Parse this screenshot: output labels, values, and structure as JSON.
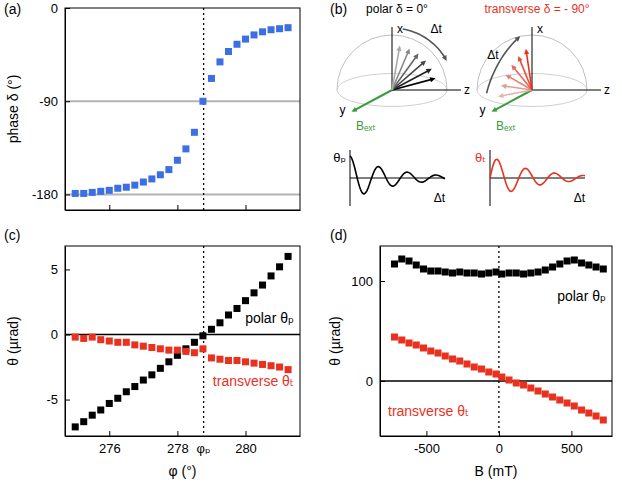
{
  "chart_data": [
    {
      "type": "scatter",
      "title": "(a)",
      "y_label": "phase δ (°)",
      "x": [
        275,
        275.25,
        275.5,
        275.75,
        276,
        276.25,
        276.5,
        276.75,
        277,
        277.25,
        277.5,
        277.75,
        278,
        278.25,
        278.5,
        278.75,
        279,
        279.25,
        279.5,
        279.75,
        280,
        280.25,
        280.5,
        280.75,
        281,
        281.25
      ],
      "xlim": [
        274.7,
        281.6
      ],
      "xticks": [
        276,
        278,
        280
      ],
      "ylim": [
        -195,
        0
      ],
      "yticks": [
        0,
        -90,
        -180
      ],
      "tick_labels": "y",
      "marker": "square",
      "series": [
        {
          "color": "#3b6fe3",
          "values": [
            -179,
            -179,
            -178,
            -177,
            -176,
            -174,
            -173,
            -171,
            -168,
            -165,
            -161,
            -156,
            -147,
            -136,
            -120,
            -90,
            -68,
            -52,
            -42,
            -35,
            -30,
            -26,
            -23,
            -21,
            -20,
            -19
          ]
        }
      ],
      "annotations": [
        {
          "type": "hline",
          "y": -90,
          "color": "#b4b4b4"
        },
        {
          "type": "hline",
          "y": -180,
          "color": "#b4b4b4"
        },
        {
          "type": "vline",
          "x": 278.77,
          "line_style": "dotted"
        }
      ]
    },
    {
      "type": "scatter",
      "title": "(c)",
      "x_label": "φ (°)",
      "y_label": "θ (µrad)",
      "x": [
        275,
        275.25,
        275.5,
        275.75,
        276,
        276.25,
        276.5,
        276.75,
        277,
        277.25,
        277.5,
        277.75,
        278,
        278.25,
        278.5,
        278.75,
        279,
        279.25,
        279.5,
        279.75,
        280,
        280.25,
        280.5,
        280.75,
        281,
        281.25
      ],
      "xlim": [
        274.7,
        281.6
      ],
      "xticks": [
        276,
        278,
        280
      ],
      "ylim": [
        -7.8,
        6.8
      ],
      "yticks": [
        -5,
        0,
        5
      ],
      "marker": "square",
      "series": [
        {
          "name": "polar θₚ",
          "color": "#000000",
          "values": [
            -7.1,
            -6.7,
            -6.2,
            -5.8,
            -5.3,
            -4.9,
            -4.4,
            -4.0,
            -3.5,
            -3.1,
            -2.6,
            -2.1,
            -1.6,
            -1.1,
            -0.6,
            -0.1,
            0.4,
            0.9,
            1.5,
            2.0,
            2.6,
            3.2,
            3.8,
            4.5,
            5.2,
            6.0
          ]
        },
        {
          "name": "transverse θₜ",
          "color": "#e8311f",
          "values": [
            -0.2,
            -0.3,
            -0.2,
            -0.4,
            -0.5,
            -0.6,
            -0.6,
            -0.8,
            -0.9,
            -1.0,
            -1.1,
            -1.2,
            -1.2,
            -1.3,
            -1.4,
            -1.1,
            -1.8,
            -1.9,
            -2.0,
            -2.0,
            -2.1,
            -2.2,
            -2.3,
            -2.4,
            -2.5,
            -2.7
          ]
        }
      ],
      "annotations": [
        {
          "type": "hline",
          "y": 0,
          "color": "#000000"
        },
        {
          "type": "vline",
          "x": 278.77,
          "label": "φₚ",
          "line_style": "dotted"
        }
      ]
    },
    {
      "type": "scatter",
      "title": "(d)",
      "x_label": "B (mT)",
      "y_label": "θ (µrad)",
      "x": [
        -720,
        -670,
        -620,
        -570,
        -520,
        -470,
        -420,
        -370,
        -320,
        -270,
        -220,
        -170,
        -120,
        -70,
        -20,
        20,
        70,
        120,
        170,
        220,
        270,
        320,
        370,
        420,
        470,
        520,
        570,
        620,
        670,
        720
      ],
      "xlim": [
        -820,
        780
      ],
      "xticks": [
        -500,
        0,
        500
      ],
      "ylim": [
        -55,
        135
      ],
      "yticks": [
        0,
        100
      ],
      "marker": "square",
      "series": [
        {
          "name": "polar θₚ",
          "color": "#000000",
          "values": [
            117,
            122,
            120,
            116,
            112,
            110,
            110,
            109,
            108,
            109,
            108,
            108,
            107,
            108,
            109,
            107,
            108,
            108,
            107,
            108,
            109,
            111,
            114,
            117,
            120,
            121,
            118,
            116,
            114,
            112
          ]
        },
        {
          "name": "transverse θₜ",
          "color": "#e8311f",
          "values": [
            44,
            41,
            38,
            36,
            33,
            30,
            28,
            25,
            22,
            20,
            17,
            14,
            12,
            9,
            7,
            4,
            1,
            -2,
            -4,
            -7,
            -10,
            -13,
            -16,
            -19,
            -22,
            -25,
            -29,
            -32,
            -35,
            -39
          ]
        }
      ],
      "annotations": [
        {
          "type": "hline",
          "y": 0,
          "color": "#000000"
        },
        {
          "type": "vline",
          "x": 0,
          "line_style": "dotted"
        }
      ]
    }
  ],
  "diagram": {
    "label": "(b)",
    "panels": [
      {
        "title": "polar δ = 0°",
        "color": "#000000",
        "axis_labels": [
          "x",
          "y",
          "z"
        ],
        "sweep_label": "Δt",
        "field_label": "Bₑₓₜ",
        "trace_label": "θₚ",
        "time_label": "Δt"
      },
      {
        "title": "transverse δ = - 90°",
        "color": "#e8311f",
        "axis_labels": [
          "x",
          "y",
          "z"
        ],
        "sweep_label": "Δt",
        "field_label": "Bₑₓₜ",
        "trace_label": "θₜ",
        "time_label": "Δt"
      }
    ]
  }
}
